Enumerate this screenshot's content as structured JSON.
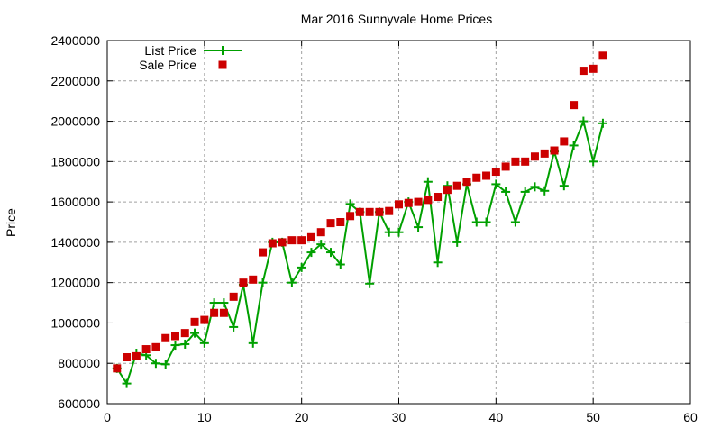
{
  "chart_data": {
    "type": "line",
    "title": "Mar 2016 Sunnyvale Home Prices",
    "xlabel": "",
    "ylabel": "Price",
    "xlim": [
      0,
      60
    ],
    "ylim": [
      600000,
      2400000
    ],
    "xticks": [
      0,
      10,
      20,
      30,
      40,
      50,
      60
    ],
    "yticks": [
      600000,
      800000,
      1000000,
      1200000,
      1400000,
      1600000,
      1800000,
      2000000,
      2200000,
      2400000
    ],
    "grid": true,
    "legend_position": "top-left",
    "x": [
      1,
      2,
      3,
      4,
      5,
      6,
      7,
      8,
      9,
      10,
      11,
      12,
      13,
      14,
      15,
      16,
      17,
      18,
      19,
      20,
      21,
      22,
      23,
      24,
      25,
      26,
      27,
      28,
      29,
      30,
      31,
      32,
      33,
      34,
      35,
      36,
      37,
      38,
      39,
      40,
      41,
      42,
      43,
      44,
      45,
      46,
      47,
      48,
      49,
      50,
      51
    ],
    "series": [
      {
        "name": "List Price",
        "style": "linespoints",
        "marker": "plus",
        "color": "#00a000",
        "values": [
          775000,
          700000,
          850000,
          840000,
          800000,
          795000,
          890000,
          895000,
          950000,
          900000,
          1100000,
          1100000,
          980000,
          1190000,
          900000,
          1200000,
          1400000,
          1400000,
          1200000,
          1275000,
          1350000,
          1390000,
          1350000,
          1290000,
          1590000,
          1550000,
          1195000,
          1550000,
          1450000,
          1450000,
          1600000,
          1475000,
          1700000,
          1300000,
          1680000,
          1400000,
          1688000,
          1500000,
          1500000,
          1688000,
          1650000,
          1500000,
          1650000,
          1675000,
          1655000,
          1850000,
          1680000,
          1880000,
          2000000,
          1800000,
          1990000
        ]
      },
      {
        "name": "Sale Price",
        "style": "points",
        "marker": "square",
        "color": "#cc0000",
        "values": [
          775000,
          830000,
          835000,
          870000,
          880000,
          925000,
          935000,
          950000,
          1005000,
          1015000,
          1050000,
          1050000,
          1130000,
          1200000,
          1215000,
          1350000,
          1395000,
          1400000,
          1410000,
          1410000,
          1425000,
          1450000,
          1495000,
          1500000,
          1530000,
          1550000,
          1550000,
          1550000,
          1555000,
          1588000,
          1595000,
          1600000,
          1610000,
          1625000,
          1660000,
          1680000,
          1700000,
          1720000,
          1730000,
          1750000,
          1775000,
          1800000,
          1800000,
          1825000,
          1840000,
          1855000,
          1900000,
          2080000,
          2250000,
          2260000,
          2325000
        ]
      }
    ]
  }
}
